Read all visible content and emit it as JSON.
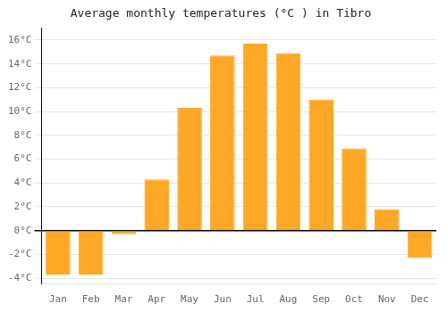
{
  "chart_data": {
    "type": "bar",
    "title": "Average monthly temperatures (°C ) in Tibro",
    "categories": [
      "Jan",
      "Feb",
      "Mar",
      "Apr",
      "May",
      "Jun",
      "Jul",
      "Aug",
      "Sep",
      "Oct",
      "Nov",
      "Dec"
    ],
    "values": [
      -3.7,
      -3.7,
      -0.3,
      4.3,
      10.3,
      14.7,
      15.7,
      14.9,
      11.0,
      6.9,
      1.8,
      -2.3
    ],
    "color": "#FFA726",
    "ylim": [
      -4.5,
      17.0
    ],
    "yticks": [
      {
        "value": -4,
        "label": "-4°C"
      },
      {
        "value": -2,
        "label": "-2°C"
      },
      {
        "value": 0,
        "label": "0°C"
      },
      {
        "value": 2,
        "label": "2°C"
      },
      {
        "value": 4,
        "label": "4°C"
      },
      {
        "value": 6,
        "label": "6°C"
      },
      {
        "value": 8,
        "label": "8°C"
      },
      {
        "value": 10,
        "label": "10°C"
      },
      {
        "value": 12,
        "label": "12°C"
      },
      {
        "value": 14,
        "label": "14°C"
      },
      {
        "value": 16,
        "label": "16°C"
      }
    ],
    "grid": true
  }
}
